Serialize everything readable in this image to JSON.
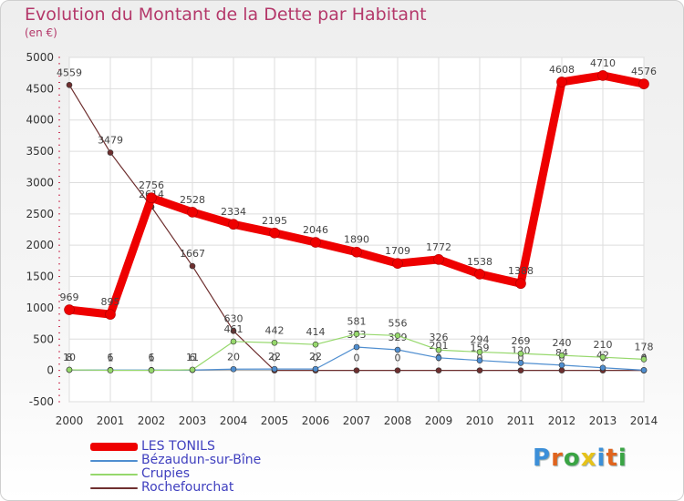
{
  "title": "Evolution du Montant de la Dette par Habitant",
  "subtitle": "(en €)",
  "logo": {
    "text": "Proxiti",
    "colors": [
      "#3c8fd8",
      "#e0641e",
      "#3aa444",
      "#e6c21a",
      "#3c8fd8",
      "#e0641e",
      "#3aa444"
    ]
  },
  "chart_data": {
    "type": "line",
    "x": [
      "2000",
      "2001",
      "2002",
      "2003",
      "2004",
      "2005",
      "2006",
      "2007",
      "2008",
      "2009",
      "2010",
      "2011",
      "2012",
      "2013",
      "2014"
    ],
    "ylim": [
      -500,
      5000
    ],
    "yticks": [
      -500,
      0,
      500,
      1000,
      1500,
      2000,
      2500,
      3000,
      3500,
      4000,
      4500,
      5000
    ],
    "grid": true,
    "legend_position": "bottom-left",
    "series": [
      {
        "name": "Rochefourchat",
        "color": "#6e2f2f",
        "values": [
          4559,
          3479,
          2614,
          1667,
          630,
          0,
          0,
          0,
          0,
          0,
          0,
          0,
          0,
          0,
          0
        ],
        "labels": [
          "4559",
          "3479",
          "2614",
          "1667",
          "630",
          "0",
          "0",
          "0",
          "0",
          "0",
          "0",
          "0",
          "0",
          "0",
          "0"
        ]
      },
      {
        "name": "Bézaudun-sur-Bîne",
        "color": "#4f8ed0",
        "values": [
          8,
          6,
          6,
          6,
          20,
          22,
          22,
          373,
          329,
          201,
          159,
          120,
          84,
          42,
          4
        ],
        "labels": [
          "8",
          "6",
          "6",
          "6",
          "20",
          "22",
          "22",
          "373",
          "329",
          "201",
          "159",
          "120",
          "84",
          "42",
          "4"
        ]
      },
      {
        "name": "Crupies",
        "color": "#96d86c",
        "values": [
          10,
          1,
          1,
          11,
          461,
          442,
          414,
          581,
          556,
          326,
          294,
          269,
          240,
          210,
          178
        ],
        "labels": [
          "10",
          "1",
          "1",
          "11",
          "461",
          "442",
          "414",
          "581",
          "556",
          "326",
          "294",
          "269",
          "240",
          "210",
          "178"
        ]
      },
      {
        "name": "LES TONILS",
        "color": "#ee0000",
        "values": [
          969,
          895,
          2756,
          2528,
          2334,
          2195,
          2046,
          1890,
          1709,
          1772,
          1538,
          1388,
          4608,
          4710,
          4576
        ],
        "labels": [
          "969",
          "895",
          "2756",
          "2528",
          "2334",
          "2195",
          "2046",
          "1890",
          "1709",
          "1772",
          "1538",
          "1388",
          "4608",
          "4710",
          "4576"
        ]
      }
    ]
  }
}
